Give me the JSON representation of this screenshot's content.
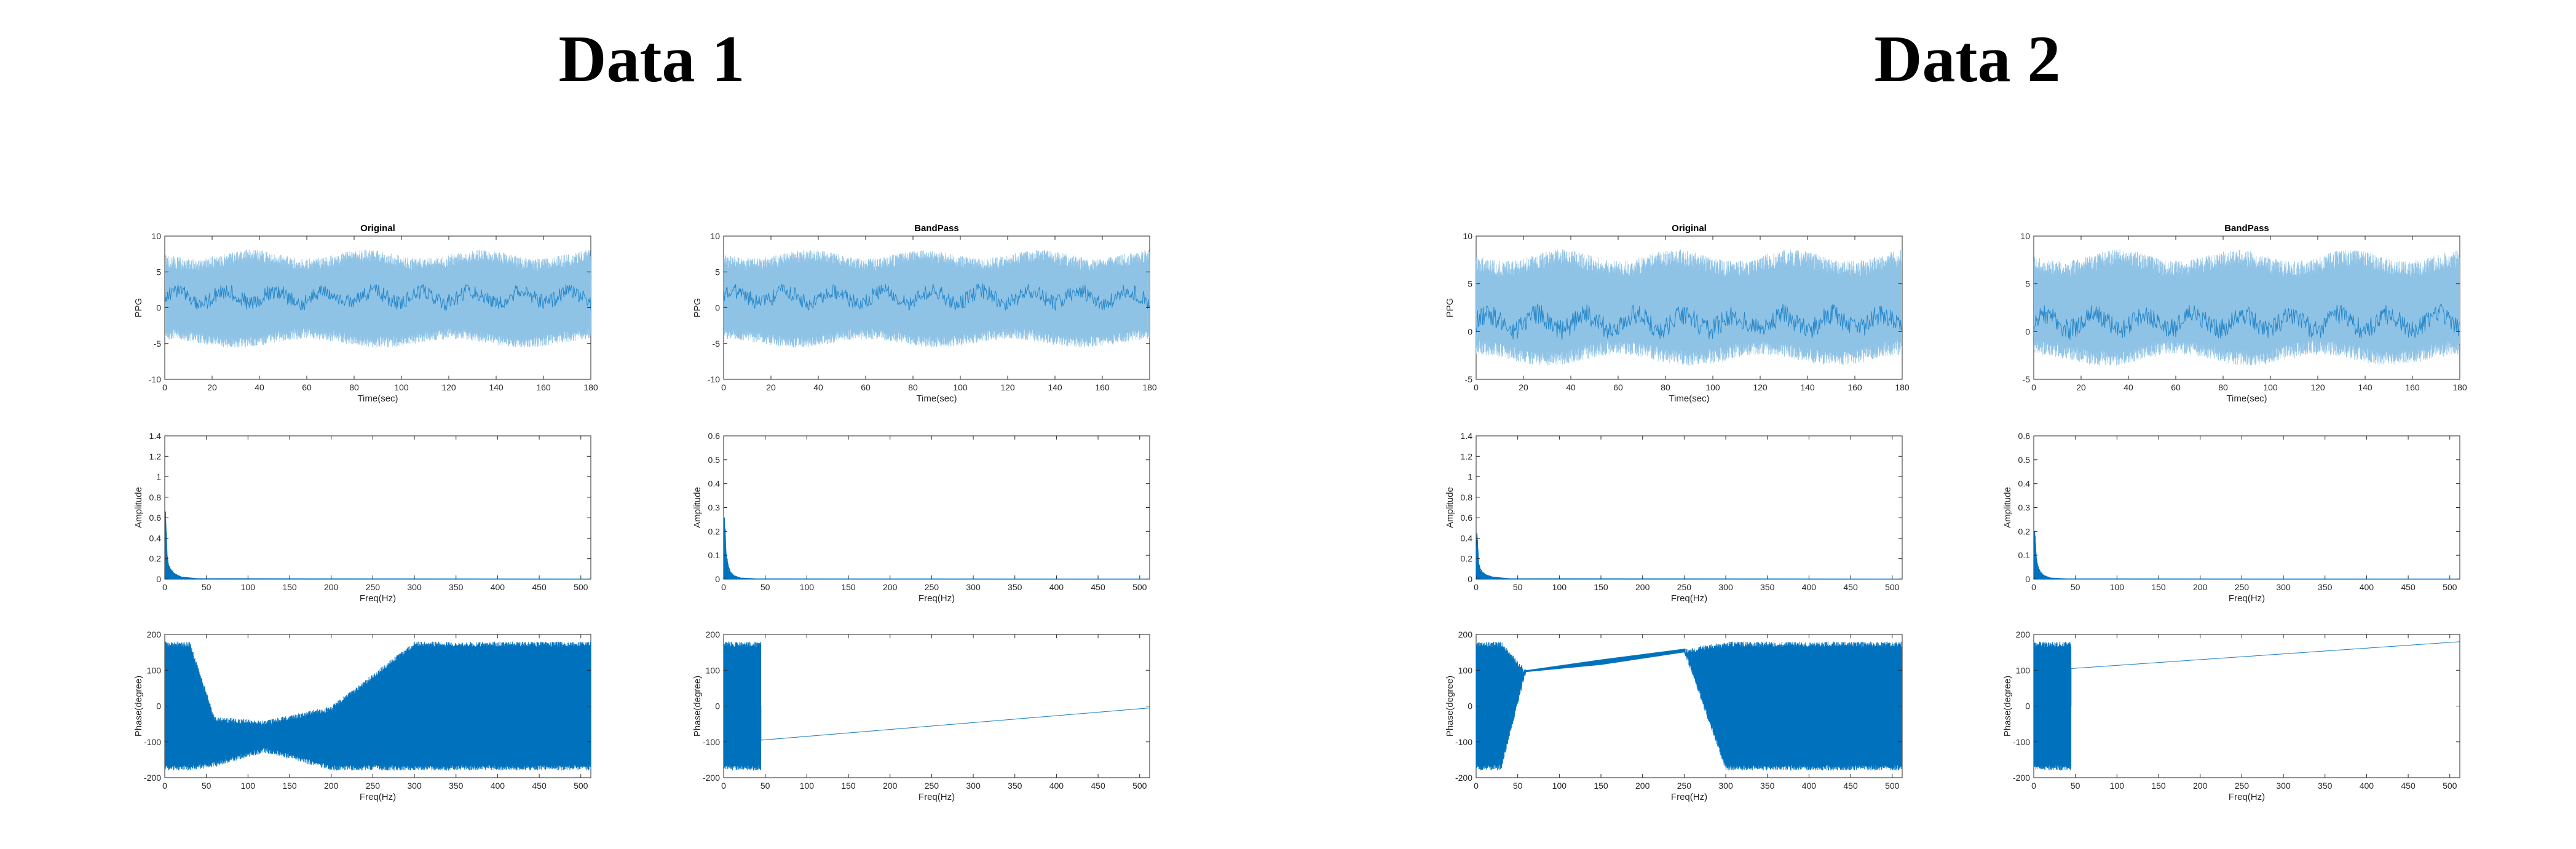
{
  "figure": {
    "titles": [
      "Data 1",
      "Data 2"
    ],
    "colors": {
      "series": "#0072BD",
      "series_light": "#8FC3E6",
      "axis": "#262626",
      "background": "#FFFFFF"
    }
  },
  "chart_data": [
    {
      "id": "d1-original-time",
      "dataset": "Data 1",
      "type": "line",
      "title": "Original",
      "xlabel": "Time(sec)",
      "ylabel": "PPG",
      "xlim": [
        0,
        180
      ],
      "ylim": [
        -10,
        10
      ],
      "xticks": [
        0,
        20,
        40,
        60,
        80,
        100,
        120,
        140,
        160,
        180
      ],
      "yticks": [
        -10,
        -5,
        0,
        5,
        10
      ],
      "series": [
        {
          "x": [
            0,
            180
          ],
          "signal_band": {
            "lower": -5,
            "upper": 7.5,
            "center": 1.5
          }
        }
      ]
    },
    {
      "id": "d1-bandpass-time",
      "dataset": "Data 1",
      "type": "line",
      "title": "BandPass",
      "xlabel": "Time(sec)",
      "ylabel": "PPG",
      "xlim": [
        0,
        180
      ],
      "ylim": [
        -10,
        10
      ],
      "xticks": [
        0,
        20,
        40,
        60,
        80,
        100,
        120,
        140,
        160,
        180
      ],
      "yticks": [
        -10,
        -5,
        0,
        5,
        10
      ],
      "series": [
        {
          "x": [
            0,
            180
          ],
          "signal_band": {
            "lower": -5,
            "upper": 7.5,
            "center": 1.5
          }
        }
      ]
    },
    {
      "id": "d2-original-time",
      "dataset": "Data 2",
      "type": "line",
      "title": "Original",
      "xlabel": "Time(sec)",
      "ylabel": "PPG",
      "xlim": [
        0,
        180
      ],
      "ylim": [
        -5,
        10
      ],
      "xticks": [
        0,
        20,
        40,
        60,
        80,
        100,
        120,
        140,
        160,
        180
      ],
      "yticks": [
        -5,
        0,
        5,
        10
      ],
      "series": [
        {
          "x": [
            0,
            180
          ],
          "signal_band": {
            "lower": -3,
            "upper": 8,
            "center": 1
          }
        }
      ]
    },
    {
      "id": "d2-bandpass-time",
      "dataset": "Data 2",
      "type": "line",
      "title": "BandPass",
      "xlabel": "Time(sec)",
      "ylabel": "",
      "xlim": [
        0,
        180
      ],
      "ylim": [
        -5,
        10
      ],
      "xticks": [
        0,
        20,
        40,
        60,
        80,
        100,
        120,
        140,
        160,
        180
      ],
      "yticks": [
        -5,
        0,
        5,
        10
      ],
      "series": [
        {
          "x": [
            0,
            180
          ],
          "signal_band": {
            "lower": -3,
            "upper": 8,
            "center": 1
          }
        }
      ]
    },
    {
      "id": "d1-original-amp",
      "dataset": "Data 1",
      "type": "line",
      "title": "",
      "xlabel": "Freq(Hz)",
      "ylabel": "Amplitude",
      "xlim": [
        0,
        512
      ],
      "ylim": [
        0,
        1.4
      ],
      "xticks": [
        0,
        50,
        100,
        150,
        200,
        250,
        300,
        350,
        400,
        450,
        500
      ],
      "yticks": [
        0,
        0.2,
        0.4,
        0.6,
        0.8,
        1,
        1.2,
        1.4
      ],
      "series": [
        {
          "x": [
            0,
            1,
            2,
            3,
            5,
            8,
            12,
            20,
            40,
            512
          ],
          "y": [
            0.05,
            0.6,
            0.4,
            0.2,
            0.12,
            0.08,
            0.05,
            0.02,
            0.005,
            0
          ]
        }
      ]
    },
    {
      "id": "d1-bandpass-amp",
      "dataset": "Data 1",
      "type": "line",
      "title": "",
      "xlabel": "Freq(Hz)",
      "ylabel": "Amplitude",
      "xlim": [
        0,
        512
      ],
      "ylim": [
        0,
        0.6
      ],
      "xticks": [
        0,
        50,
        100,
        150,
        200,
        250,
        300,
        350,
        400,
        450,
        500
      ],
      "yticks": [
        0,
        0.1,
        0.2,
        0.3,
        0.4,
        0.5,
        0.6
      ],
      "series": [
        {
          "x": [
            0,
            1,
            2,
            3,
            5,
            8,
            12,
            20,
            40,
            512
          ],
          "y": [
            0.02,
            0.22,
            0.18,
            0.1,
            0.06,
            0.03,
            0.015,
            0.005,
            0.001,
            0
          ]
        }
      ]
    },
    {
      "id": "d2-original-amp",
      "dataset": "Data 2",
      "type": "line",
      "title": "",
      "xlabel": "Freq(Hz)",
      "ylabel": "Amplitude",
      "xlim": [
        0,
        512
      ],
      "ylim": [
        0,
        1.4
      ],
      "xticks": [
        0,
        50,
        100,
        150,
        200,
        250,
        300,
        350,
        400,
        450,
        500
      ],
      "yticks": [
        0,
        0.2,
        0.4,
        0.6,
        0.8,
        1,
        1.2,
        1.4
      ],
      "series": [
        {
          "x": [
            0,
            1,
            2,
            3,
            5,
            8,
            12,
            20,
            40,
            512
          ],
          "y": [
            0.05,
            0.45,
            0.3,
            0.15,
            0.1,
            0.06,
            0.04,
            0.02,
            0.005,
            0
          ]
        }
      ]
    },
    {
      "id": "d2-bandpass-amp",
      "dataset": "Data 2",
      "type": "line",
      "title": "",
      "xlabel": "Freq(Hz)",
      "ylabel": "Amplitude",
      "xlim": [
        0,
        512
      ],
      "ylim": [
        0,
        0.6
      ],
      "xticks": [
        0,
        50,
        100,
        150,
        200,
        250,
        300,
        350,
        400,
        450,
        500
      ],
      "yticks": [
        0,
        0.1,
        0.2,
        0.3,
        0.4,
        0.5,
        0.6
      ],
      "series": [
        {
          "x": [
            0,
            1,
            2,
            3,
            5,
            8,
            12,
            20,
            40,
            512
          ],
          "y": [
            0.02,
            0.2,
            0.15,
            0.09,
            0.05,
            0.03,
            0.015,
            0.005,
            0.001,
            0
          ]
        }
      ]
    },
    {
      "id": "d1-original-phase",
      "dataset": "Data 1",
      "type": "line",
      "title": "",
      "xlabel": "Freq(Hz)",
      "ylabel": "Phase(degree)",
      "xlim": [
        0,
        512
      ],
      "ylim": [
        -200,
        200
      ],
      "xticks": [
        0,
        50,
        100,
        150,
        200,
        250,
        300,
        350,
        400,
        450,
        500
      ],
      "yticks": [
        -200,
        -100,
        0,
        100,
        200
      ],
      "series": [
        {
          "x": [
            0,
            30,
            60,
            120,
            200,
            300,
            400,
            512
          ],
          "upper": [
            180,
            180,
            -30,
            -40,
            0,
            180,
            180,
            180
          ],
          "lower": [
            -180,
            -180,
            -170,
            -130,
            -180,
            -180,
            -180,
            -180
          ]
        }
      ]
    },
    {
      "id": "d1-bandpass-phase",
      "dataset": "Data 1",
      "type": "line",
      "title": "",
      "xlabel": "Freq(Hz)",
      "ylabel": "Phase(degree)",
      "xlim": [
        0,
        512
      ],
      "ylim": [
        -200,
        200
      ],
      "xticks": [
        0,
        50,
        100,
        150,
        200,
        250,
        300,
        350,
        400,
        450,
        500
      ],
      "yticks": [
        -200,
        -100,
        0,
        100,
        200
      ],
      "series": [
        {
          "x": [
            0,
            45,
            45,
            512
          ],
          "upper": [
            180,
            180,
            -95,
            -5
          ],
          "lower": [
            -180,
            -180,
            -95,
            -5
          ]
        }
      ]
    },
    {
      "id": "d2-original-phase",
      "dataset": "Data 2",
      "type": "line",
      "title": "",
      "xlabel": "Freq(Hz)",
      "ylabel": "Phase(degree)",
      "xlim": [
        0,
        512
      ],
      "ylim": [
        -200,
        200
      ],
      "xticks": [
        0,
        50,
        100,
        150,
        200,
        250,
        300,
        350,
        400,
        450,
        500
      ],
      "yticks": [
        -200,
        -100,
        0,
        100,
        200
      ],
      "series": [
        {
          "x": [
            0,
            30,
            60,
            150,
            250,
            300,
            360,
            512
          ],
          "upper": [
            180,
            180,
            100,
            130,
            160,
            180,
            180,
            180
          ],
          "lower": [
            -180,
            -180,
            95,
            115,
            150,
            -180,
            -180,
            -180
          ]
        }
      ]
    },
    {
      "id": "d2-bandpass-phase",
      "dataset": "Data 2",
      "type": "line",
      "title": "",
      "xlabel": "Freq(Hz)",
      "ylabel": "Phase(degree)",
      "xlim": [
        0,
        512
      ],
      "ylim": [
        -200,
        200
      ],
      "xticks": [
        0,
        50,
        100,
        150,
        200,
        250,
        300,
        350,
        400,
        450,
        500
      ],
      "yticks": [
        -200,
        -100,
        0,
        100,
        200
      ],
      "series": [
        {
          "x": [
            0,
            45,
            45,
            512
          ],
          "upper": [
            180,
            180,
            105,
            180
          ],
          "lower": [
            -180,
            -180,
            105,
            180
          ]
        }
      ]
    }
  ]
}
